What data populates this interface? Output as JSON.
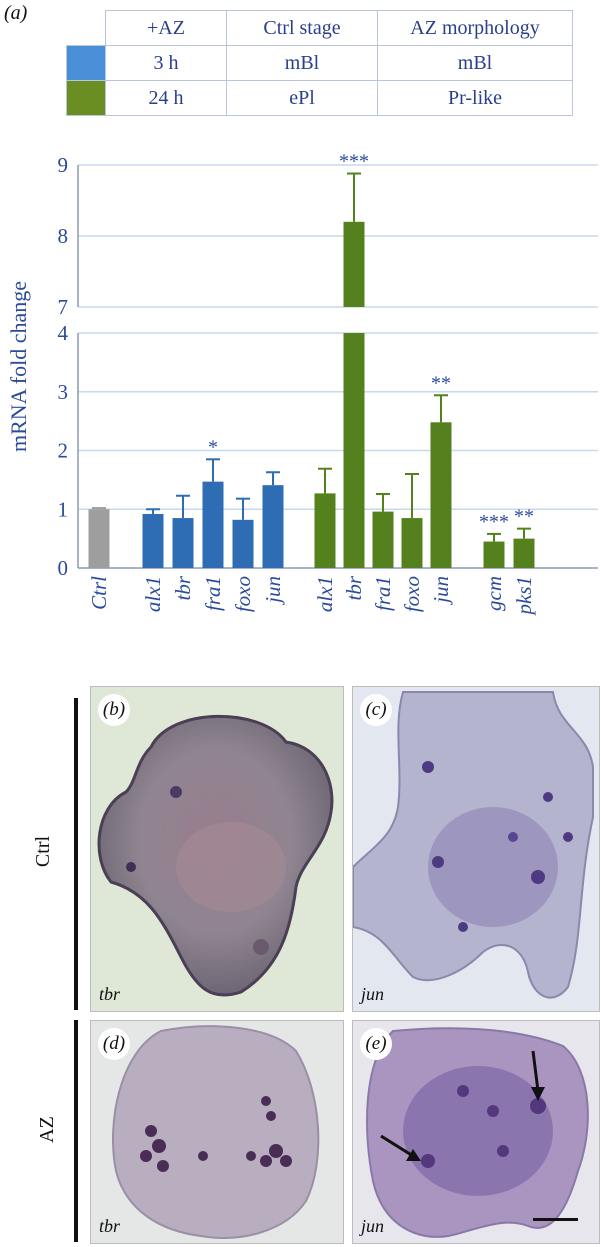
{
  "panel_labels": {
    "a": "(a)",
    "b": "(b)",
    "c": "(c)",
    "d": "(d)",
    "e": "(e)"
  },
  "legend_table": {
    "headers": [
      "+AZ",
      "Ctrl stage",
      "AZ morphology"
    ],
    "rows": [
      {
        "color": "#4a90d9",
        "time": "3 h",
        "ctrl_stage": "mBl",
        "az_morphology": "mBl"
      },
      {
        "color": "#6b8e23",
        "time": "24 h",
        "ctrl_stage": "ePl",
        "az_morphology": "Pr-like"
      }
    ]
  },
  "colors": {
    "ctrl": "#9e9e9e",
    "blue": "#2e6db3",
    "green": "#55801e",
    "axis_text": "#2a4a9a",
    "grid": "#c7d9ee"
  },
  "chart_data": {
    "type": "bar",
    "ylabel": "mRNA fold change",
    "y_ticks": [
      "0",
      "1",
      "2",
      "3",
      "4",
      "7",
      "8",
      "9"
    ],
    "y_axis_break": {
      "lower_range": [
        0,
        4
      ],
      "upper_range": [
        7,
        9
      ]
    },
    "categories": [
      "Ctrl",
      "alx1",
      "tbr",
      "fra1",
      "foxo",
      "jun",
      "alx1",
      "tbr",
      "fra1",
      "foxo",
      "jun",
      "gcm",
      "pks1"
    ],
    "groups": [
      "ctrl",
      "blue",
      "blue",
      "blue",
      "blue",
      "blue",
      "green",
      "green",
      "green",
      "green",
      "green",
      "green",
      "green"
    ],
    "values": [
      1.0,
      0.92,
      0.85,
      1.47,
      0.82,
      1.41,
      1.27,
      8.2,
      0.96,
      0.85,
      2.48,
      0.45,
      0.5
    ],
    "errors": [
      0.02,
      0.08,
      0.38,
      0.38,
      0.36,
      0.22,
      0.42,
      0.68,
      0.3,
      0.75,
      0.46,
      0.13,
      0.17
    ],
    "significance": [
      "",
      "",
      "",
      "*",
      "",
      "",
      "",
      "***",
      "",
      "",
      "**",
      "***",
      "**"
    ]
  },
  "micrographs": {
    "row_labels": [
      "Ctrl",
      "AZ"
    ],
    "b_label": "tbr",
    "c_label": "jun",
    "d_label": "tbr",
    "e_label": "jun"
  }
}
